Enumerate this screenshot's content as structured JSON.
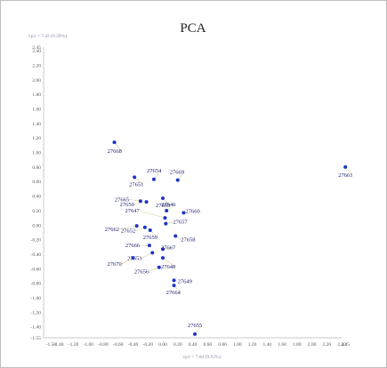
{
  "chart_data": {
    "type": "scatter",
    "title": "PCA",
    "xlabel": "vp1 = 7.84 (9.93%)",
    "ylabel": "vp2 = 7.42 (9.39%)",
    "xlim": [
      -1.6,
      2.4
    ],
    "ylim": [
      -1.55,
      2.45
    ],
    "grid": false,
    "colors": {
      "point": "#1f35c4",
      "axis": "#c8c8c8",
      "leader": "#d8cf9a"
    },
    "yticks": [
      "2.45",
      "2.40",
      "2.20",
      "2.00",
      "1.80",
      "1.60",
      "1.40",
      "1.20",
      "1.00",
      "0.80",
      "0.60",
      "0.40",
      "0.20",
      "0.00",
      "-0.20",
      "-0.40",
      "-0.60",
      "-0.80",
      "-1.00",
      "-1.20",
      "-1.40",
      "-1.55"
    ],
    "xticks": [
      "-1.50",
      "-1.40",
      "-1.20",
      "-1.00",
      "-0.80",
      "-0.60",
      "-0.40",
      "-0.20",
      "0.00",
      "0.20",
      "0.40",
      "0.60",
      "0.80",
      "1.00",
      "1.20",
      "1.40",
      "1.60",
      "1.80",
      "2.00",
      "2.20",
      "2.40",
      "2.45"
    ],
    "points": [
      {
        "label": "27661",
        "x": 2.45,
        "y": 0.8
      },
      {
        "label": "27668",
        "x": -0.65,
        "y": 1.14
      },
      {
        "label": "27669",
        "x": 0.2,
        "y": 0.62
      },
      {
        "label": "27654",
        "x": -0.12,
        "y": 0.63
      },
      {
        "label": "27651",
        "x": -0.38,
        "y": 0.66
      },
      {
        "label": "27663",
        "x": 0.0,
        "y": 0.37
      },
      {
        "label": "27665",
        "x": -0.3,
        "y": 0.33
      },
      {
        "label": "27650",
        "x": -0.22,
        "y": 0.32
      },
      {
        "label": "27646",
        "x": 0.05,
        "y": 0.2
      },
      {
        "label": "27660",
        "x": 0.28,
        "y": 0.17
      },
      {
        "label": "27647",
        "x": 0.03,
        "y": 0.1
      },
      {
        "label": "27657",
        "x": 0.04,
        "y": 0.02
      },
      {
        "label": "27662",
        "x": -0.35,
        "y": -0.01
      },
      {
        "label": "27652",
        "x": -0.24,
        "y": -0.03
      },
      {
        "label": "27659",
        "x": -0.17,
        "y": -0.07
      },
      {
        "label": "27658",
        "x": 0.17,
        "y": -0.15
      },
      {
        "label": "27666",
        "x": -0.18,
        "y": -0.28
      },
      {
        "label": "27667",
        "x": 0.0,
        "y": -0.33
      },
      {
        "label": "27653",
        "x": -0.14,
        "y": -0.38
      },
      {
        "label": "27670",
        "x": -0.4,
        "y": -0.45
      },
      {
        "label": "27648",
        "x": 0.0,
        "y": -0.45
      },
      {
        "label": "27656",
        "x": -0.05,
        "y": -0.58
      },
      {
        "label": "27649",
        "x": 0.15,
        "y": -0.76
      },
      {
        "label": "27664",
        "x": 0.15,
        "y": -0.83
      },
      {
        "label": "27655",
        "x": 0.43,
        "y": -1.5
      }
    ]
  }
}
